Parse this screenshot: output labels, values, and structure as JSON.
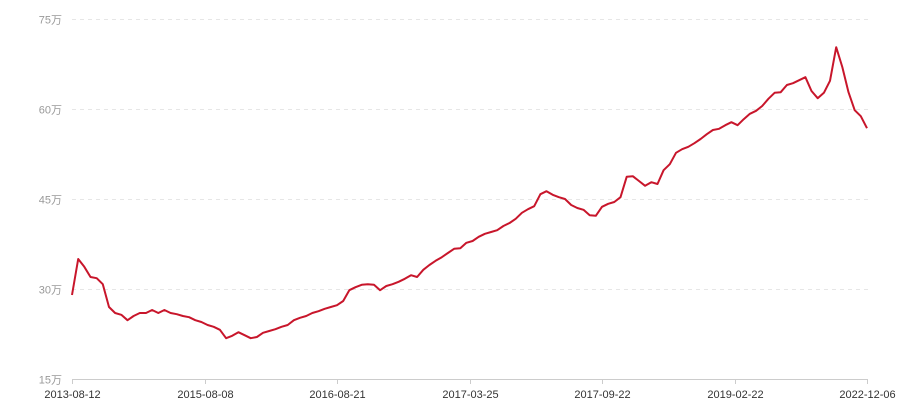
{
  "chart_data": {
    "type": "line",
    "title": "",
    "xlabel": "",
    "ylabel": "",
    "ylim": [
      15,
      75
    ],
    "y_ticks": [
      15,
      30,
      45,
      60,
      75
    ],
    "y_tick_labels": [
      "15万",
      "30万",
      "45万",
      "60万",
      "75万"
    ],
    "x_tick_labels": [
      "2013-08-12",
      "2015-08-08",
      "2016-08-21",
      "2017-03-25",
      "2017-09-22",
      "2019-02-22",
      "2022-12-06"
    ],
    "grid": "horizontal dashed",
    "legend": "none",
    "line_color": "#c8162b",
    "series": [
      {
        "values": [
          29.0,
          35.0,
          33.7,
          32.0,
          31.8,
          30.8,
          27.0,
          26.0,
          25.7,
          24.8,
          25.5,
          26.0,
          26.0,
          26.5,
          26.0,
          26.5,
          26.0,
          25.8,
          25.5,
          25.3,
          24.8,
          24.5,
          24.0,
          23.7,
          23.2,
          21.8,
          22.2,
          22.8,
          22.3,
          21.8,
          22.0,
          22.7,
          23.0,
          23.3,
          23.7,
          24.0,
          24.8,
          25.2,
          25.5,
          26.0,
          26.3,
          26.7,
          27.0,
          27.3,
          28.0,
          29.8,
          30.3,
          30.7,
          30.8,
          30.7,
          29.8,
          30.5,
          30.8,
          31.2,
          31.7,
          32.3,
          32.0,
          33.2,
          34.0,
          34.7,
          35.3,
          36.0,
          36.7,
          36.8,
          37.7,
          38.0,
          38.7,
          39.2,
          39.5,
          39.8,
          40.5,
          41.0,
          41.7,
          42.7,
          43.3,
          43.8,
          45.8,
          46.3,
          45.7,
          45.3,
          45.0,
          44.0,
          43.5,
          43.2,
          42.3,
          42.2,
          43.7,
          44.2,
          44.5,
          45.3,
          48.7,
          48.8,
          48.0,
          47.2,
          47.8,
          47.5,
          49.8,
          50.8,
          52.7,
          53.3,
          53.7,
          54.3,
          55.0,
          55.8,
          56.5,
          56.7,
          57.3,
          57.8,
          57.3,
          58.3,
          59.2,
          59.7,
          60.5,
          61.7,
          62.7,
          62.8,
          64.0,
          64.3,
          64.8,
          65.3,
          63.0,
          61.8,
          62.7,
          64.7,
          70.3,
          67.0,
          62.8,
          59.8,
          58.8,
          56.8
        ]
      }
    ]
  }
}
